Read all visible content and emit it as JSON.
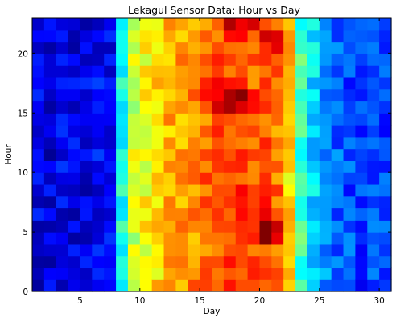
{
  "chart_data": {
    "type": "heatmap",
    "title": "Lekagul Sensor Data: Hour vs Day",
    "xlabel": "Day",
    "ylabel": "Hour",
    "xlim": [
      1,
      31
    ],
    "ylim": [
      0,
      23
    ],
    "x_ticks": [
      5,
      10,
      15,
      20,
      25,
      30
    ],
    "y_ticks": [
      0,
      5,
      10,
      15,
      20
    ],
    "colormap": "jet",
    "color_range": [
      0,
      1
    ],
    "grid": false,
    "legend": "none",
    "days": [
      1,
      2,
      3,
      4,
      5,
      6,
      7,
      8,
      9,
      10,
      11,
      12,
      13,
      14,
      15,
      16,
      17,
      18,
      19,
      20,
      21,
      22,
      23,
      24,
      25,
      26,
      27,
      28,
      29,
      30
    ],
    "hours": [
      0,
      1,
      2,
      3,
      4,
      5,
      6,
      7,
      8,
      9,
      10,
      11,
      12,
      13,
      14,
      15,
      16,
      17,
      18,
      19,
      20,
      21,
      22
    ],
    "intensity_by_day": [
      0.1,
      0.09,
      0.11,
      0.1,
      0.1,
      0.12,
      0.11,
      0.4,
      0.58,
      0.62,
      0.66,
      0.7,
      0.72,
      0.74,
      0.77,
      0.78,
      0.8,
      0.81,
      0.78,
      0.8,
      0.76,
      0.66,
      0.44,
      0.34,
      0.26,
      0.22,
      0.2,
      0.18,
      0.2,
      0.19
    ],
    "hot_spots": [
      {
        "day": 17,
        "hour": 15.8,
        "value": 1.0
      },
      {
        "day": 20,
        "hour": 4.6,
        "value": 0.98
      },
      {
        "day": 18,
        "hour": 22.5,
        "value": 0.96
      },
      {
        "day": 21,
        "hour": 20.5,
        "value": 0.94
      }
    ]
  }
}
